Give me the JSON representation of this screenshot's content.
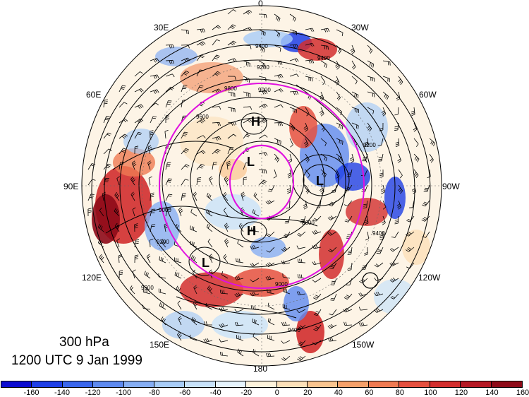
{
  "map": {
    "level": "300 hPa",
    "valid_time": "1200 UTC 9 Jan 1999",
    "longitude_labels": [
      "0",
      "30W",
      "60W",
      "90W",
      "120W",
      "150W",
      "180",
      "150E",
      "120E",
      "90E",
      "60E",
      "30E"
    ],
    "pressure_centers": [
      {
        "label": "H",
        "name": "high-center-atlantic"
      },
      {
        "label": "L",
        "name": "low-center-north-pole"
      },
      {
        "label": "L",
        "name": "low-center-canada"
      },
      {
        "label": "H",
        "name": "high-center-siberia"
      },
      {
        "label": "L",
        "name": "low-center-far-east"
      }
    ],
    "contour_labels": [
      "9400",
      "9200",
      "9000",
      "8600",
      "9600",
      "9800",
      "9400",
      "9200",
      "9000",
      "9400",
      "9600",
      "9000",
      "9200",
      "9400"
    ],
    "colors": {
      "ring": "#e010e0",
      "contour": "#000000",
      "neutral": "#ffffff"
    }
  },
  "colorbar": {
    "labels": [
      "-160",
      "-140",
      "-120",
      "-100",
      "-80",
      "-60",
      "-40",
      "-20",
      "0",
      "20",
      "40",
      "60",
      "80",
      "100",
      "120",
      "140",
      "160"
    ],
    "colors": [
      "#0b0bd0",
      "#1e3ee6",
      "#3a66ec",
      "#5e8af0",
      "#86aef4",
      "#a8ccf7",
      "#c8e2fa",
      "#e6f4fd",
      "#fdf3dc",
      "#fce0b9",
      "#f9c48f",
      "#f5a06a",
      "#ef7a52",
      "#e5503f",
      "#d22e2e",
      "#b51824",
      "#8e0a18"
    ]
  }
}
